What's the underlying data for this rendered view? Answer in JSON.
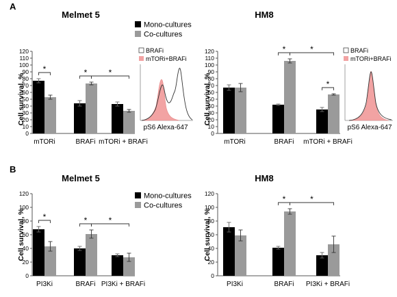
{
  "panels": [
    {
      "letter": "A"
    },
    {
      "letter": "B"
    }
  ],
  "legends": [
    {
      "items": [
        "Mono-cultures",
        "Co-cultures"
      ]
    },
    {
      "items": [
        "Mono-cultures",
        "Co-cultures"
      ]
    }
  ],
  "colors": {
    "mono": "#000000",
    "co": "#9a9a9a",
    "axis": "#555555",
    "hist_fill": "#f2a3a3"
  },
  "insets": [
    {
      "legend": [
        "BRAFi",
        "mTORi+BRAFi"
      ],
      "xlabel": "pS6 Alexa-647"
    },
    {
      "legend": [
        "BRAFi",
        "mTORi+BRAFi"
      ],
      "xlabel": "pS6 Alexa-647"
    }
  ],
  "chart_data": [
    {
      "type": "bar",
      "title": "Melmet 5",
      "ylabel": "Cell survival, %",
      "categories": [
        "mTORi",
        "BRAFi",
        "mTORi + BRAFi"
      ],
      "ylim": [
        0,
        120
      ],
      "yticks": [
        0,
        10,
        20,
        30,
        40,
        50,
        60,
        70,
        80,
        90,
        100,
        110,
        120
      ],
      "series": [
        {
          "name": "Mono-cultures",
          "values": [
            77,
            44,
            43
          ],
          "errors": [
            3,
            4,
            3
          ]
        },
        {
          "name": "Co-cultures",
          "values": [
            53,
            73,
            33
          ],
          "errors": [
            3,
            2,
            2
          ]
        }
      ],
      "annotations": [
        {
          "text": "*",
          "from": [
            0,
            0
          ],
          "to": [
            0,
            1
          ]
        },
        {
          "text": "*",
          "from": [
            1,
            0
          ],
          "to": [
            1,
            1
          ]
        },
        {
          "text": "*",
          "from": [
            1,
            1
          ],
          "to": [
            2,
            1
          ]
        }
      ]
    },
    {
      "type": "bar",
      "title": "HM8",
      "ylabel": "Cell survival, %",
      "categories": [
        "mTORi",
        "BRAFi",
        "mTORi + BRAFi"
      ],
      "ylim": [
        0,
        120
      ],
      "yticks": [
        0,
        10,
        20,
        30,
        40,
        50,
        60,
        70,
        80,
        90,
        100,
        110,
        120
      ],
      "series": [
        {
          "name": "Mono-cultures",
          "values": [
            67,
            42,
            35
          ],
          "errors": [
            4,
            1,
            3
          ]
        },
        {
          "name": "Co-cultures",
          "values": [
            67,
            106,
            57
          ],
          "errors": [
            6,
            3,
            1
          ]
        }
      ],
      "annotations": [
        {
          "text": "*",
          "from": [
            1,
            0
          ],
          "to": [
            1,
            1
          ]
        },
        {
          "text": "*",
          "from": [
            1,
            1
          ],
          "to": [
            2,
            1
          ]
        },
        {
          "text": "*",
          "from": [
            2,
            0
          ],
          "to": [
            2,
            1
          ]
        }
      ]
    },
    {
      "type": "bar",
      "title": "Melmet 5",
      "ylabel": "Cell survival, %",
      "categories": [
        "PI3Ki",
        "BRAFi",
        "PI3Ki + BRAFi"
      ],
      "ylim": [
        0,
        120
      ],
      "yticks": [
        0,
        20,
        40,
        60,
        80,
        100,
        120
      ],
      "series": [
        {
          "name": "Mono-cultures",
          "values": [
            68,
            40,
            30
          ],
          "errors": [
            4,
            3,
            2
          ]
        },
        {
          "name": "Co-cultures",
          "values": [
            43,
            61,
            27
          ],
          "errors": [
            7,
            6,
            6
          ]
        }
      ],
      "annotations": [
        {
          "text": "*",
          "from": [
            0,
            0
          ],
          "to": [
            0,
            1
          ]
        },
        {
          "text": "*",
          "from": [
            1,
            0
          ],
          "to": [
            1,
            1
          ]
        },
        {
          "text": "*",
          "from": [
            1,
            1
          ],
          "to": [
            2,
            1
          ]
        }
      ]
    },
    {
      "type": "bar",
      "title": "HM8",
      "ylabel": "Cell survival, %",
      "categories": [
        "PI3Ki",
        "BRAFi",
        "PI3Ki + BRAFi"
      ],
      "ylim": [
        0,
        120
      ],
      "yticks": [
        0,
        20,
        40,
        60,
        80,
        100,
        120
      ],
      "series": [
        {
          "name": "Mono-cultures",
          "values": [
            71,
            41,
            30
          ],
          "errors": [
            7,
            2,
            4
          ]
        },
        {
          "name": "Co-cultures",
          "values": [
            59,
            94,
            46
          ],
          "errors": [
            8,
            4,
            12
          ]
        }
      ],
      "annotations": [
        {
          "text": "*",
          "from": [
            1,
            0
          ],
          "to": [
            1,
            1
          ]
        },
        {
          "text": "*",
          "from": [
            1,
            1
          ],
          "to": [
            2,
            1
          ]
        }
      ]
    }
  ]
}
